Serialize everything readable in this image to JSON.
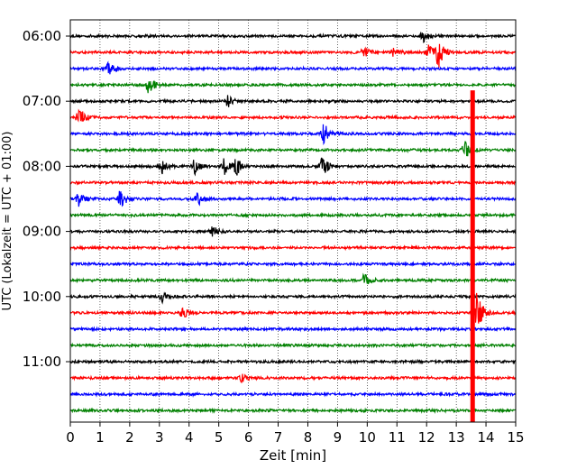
{
  "chart_data": {
    "type": "line",
    "title": "",
    "xlabel": "Zeit  [min]",
    "ylabel": "UTC (Lokalzeit = UTC + 01:00)",
    "xlim": [
      0,
      15
    ],
    "x_ticks": [
      0,
      1,
      2,
      3,
      4,
      5,
      6,
      7,
      8,
      9,
      10,
      11,
      12,
      13,
      14,
      15
    ],
    "y_tick_labels": [
      "06:00",
      "07:00",
      "08:00",
      "09:00",
      "10:00",
      "11:00"
    ],
    "trace_start_times": [
      "06:00",
      "06:15",
      "06:30",
      "06:45",
      "07:00",
      "07:15",
      "07:30",
      "07:45",
      "08:00",
      "08:15",
      "08:30",
      "08:45",
      "09:00",
      "09:15",
      "09:30",
      "09:45",
      "10:00",
      "10:15",
      "10:30",
      "10:45",
      "11:00",
      "11:15",
      "11:30",
      "11:45"
    ],
    "trace_colors": [
      "#000000",
      "#ff0000",
      "#0000ff",
      "#008000"
    ],
    "grid": "vertical dotted lines at each minute",
    "legend": "none",
    "events": [
      {
        "trace_time": "06:15",
        "time_min": 9.9,
        "amplitude": 0.35
      },
      {
        "trace_time": "06:15",
        "time_min": 10.9,
        "amplitude": 0.25
      },
      {
        "trace_time": "06:15",
        "time_min": 12.1,
        "amplitude": 0.5
      },
      {
        "trace_time": "06:15",
        "time_min": 12.4,
        "amplitude": 0.9
      },
      {
        "trace_time": "06:00",
        "time_min": 11.9,
        "amplitude": 0.3
      },
      {
        "trace_time": "06:30",
        "time_min": 1.3,
        "amplitude": 0.35
      },
      {
        "trace_time": "06:45",
        "time_min": 2.65,
        "amplitude": 0.5
      },
      {
        "trace_time": "07:00",
        "time_min": 5.3,
        "amplitude": 0.35
      },
      {
        "trace_time": "07:15",
        "time_min": 0.3,
        "amplitude": 0.6
      },
      {
        "trace_time": "07:30",
        "time_min": 8.55,
        "amplitude": 0.6
      },
      {
        "trace_time": "07:45",
        "time_min": 13.3,
        "amplitude": 0.5
      },
      {
        "trace_time": "08:00",
        "time_min": 3.1,
        "amplitude": 0.4
      },
      {
        "trace_time": "08:00",
        "time_min": 4.2,
        "amplitude": 0.45
      },
      {
        "trace_time": "08:00",
        "time_min": 5.2,
        "amplitude": 0.5
      },
      {
        "trace_time": "08:00",
        "time_min": 5.6,
        "amplitude": 0.55
      },
      {
        "trace_time": "08:00",
        "time_min": 8.5,
        "amplitude": 0.6
      },
      {
        "trace_time": "08:30",
        "time_min": 0.3,
        "amplitude": 0.45
      },
      {
        "trace_time": "08:30",
        "time_min": 1.7,
        "amplitude": 0.55
      },
      {
        "trace_time": "08:30",
        "time_min": 4.3,
        "amplitude": 0.4
      },
      {
        "trace_time": "09:00",
        "time_min": 4.8,
        "amplitude": 0.3
      },
      {
        "trace_time": "09:45",
        "time_min": 9.9,
        "amplitude": 0.4
      },
      {
        "trace_time": "10:00",
        "time_min": 3.1,
        "amplitude": 0.3
      },
      {
        "trace_time": "10:15",
        "time_min": 3.8,
        "amplitude": 0.3
      },
      {
        "trace_time": "10:15",
        "time_min": 13.7,
        "amplitude": 1.3
      },
      {
        "trace_time": "11:15",
        "time_min": 5.8,
        "amplitude": 0.25
      }
    ],
    "spike": {
      "time_min": 13.55,
      "from": "07:00",
      "to": "11:45",
      "color": "#ff0000"
    }
  }
}
